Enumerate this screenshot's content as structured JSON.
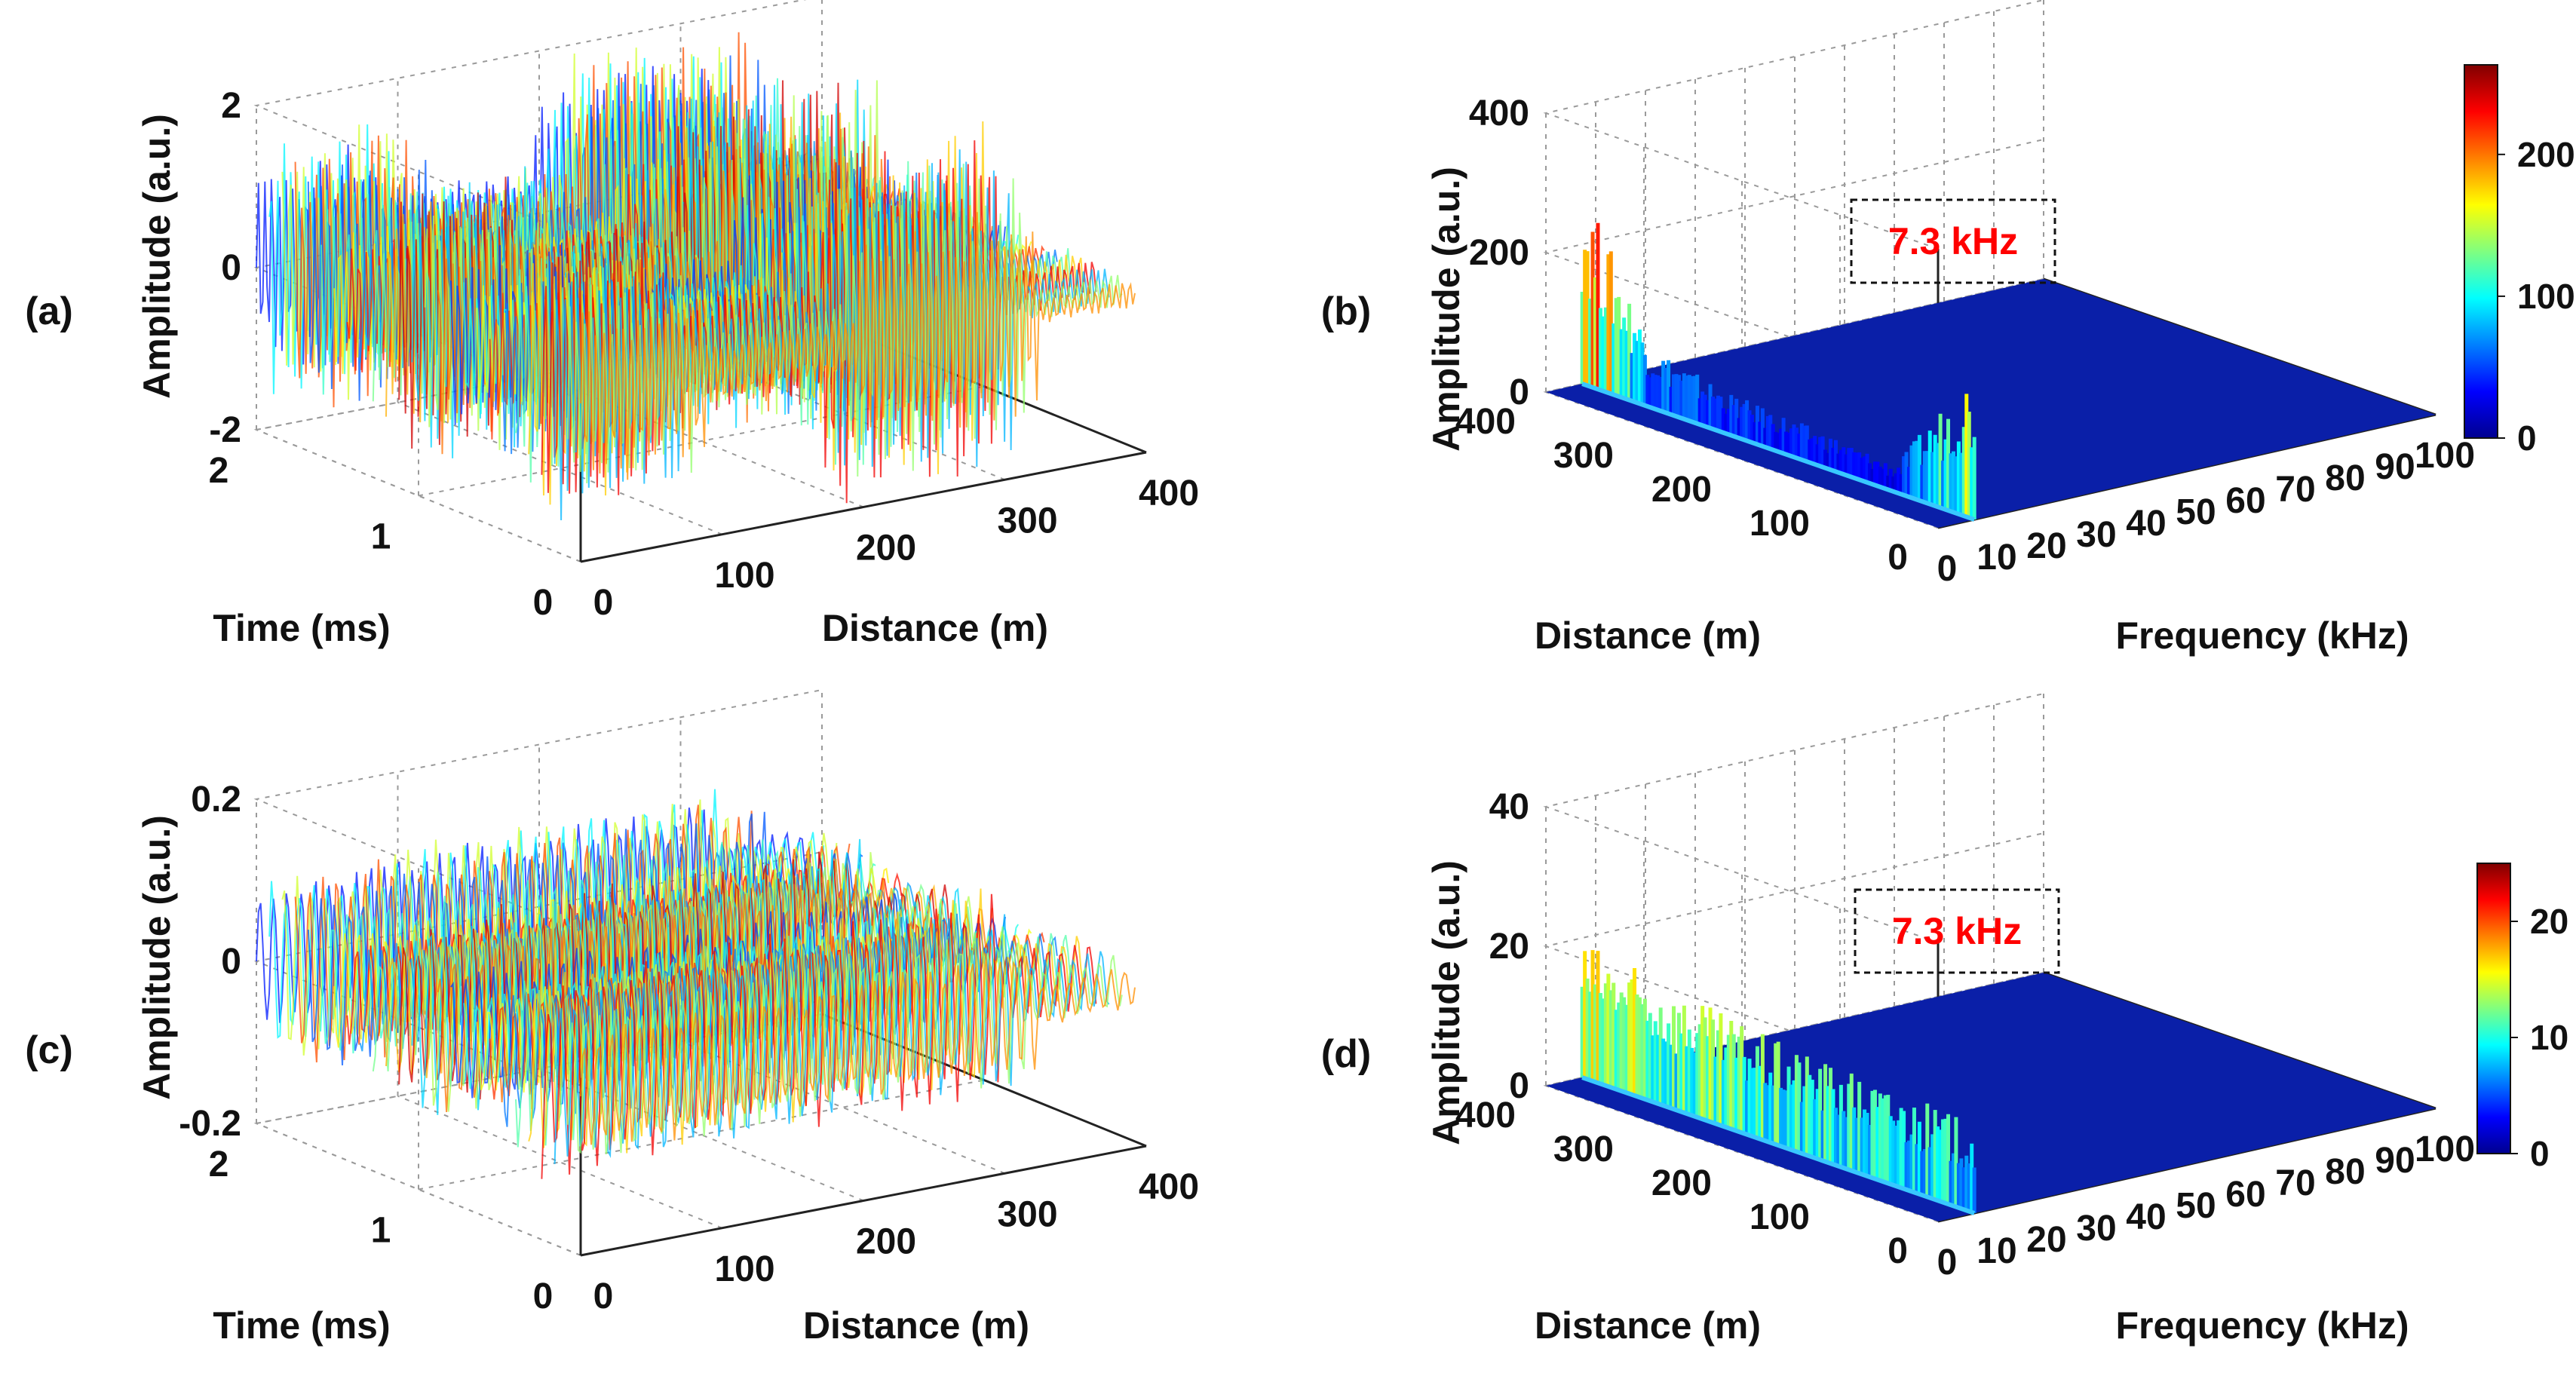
{
  "chart_data": [
    {
      "panel": "(a)",
      "type": "surface",
      "xlabel": "Distance (m)",
      "ylabel": "Time (ms)",
      "zlabel": "Amplitude (a.u.)",
      "xticks": [
        "0",
        "100",
        "200",
        "300",
        "400"
      ],
      "yticks": [
        "0",
        "1",
        "2"
      ],
      "zticks": [
        "-2",
        "0",
        "2"
      ],
      "xlim": [
        0,
        400
      ],
      "ylim": [
        0,
        2
      ],
      "zlim": [
        -2,
        2
      ],
      "grid": true,
      "colormap": "jet",
      "segments": [
        {
          "x_start": 0,
          "x_end": 90,
          "amplitude": 1.8
        },
        {
          "x_start": 90,
          "x_end": 200,
          "amplitude": 0.8
        },
        {
          "x_start": 200,
          "x_end": 330,
          "amplitude": 2.3
        },
        {
          "x_start": 330,
          "x_end": 400,
          "amplitude": 0.3
        }
      ]
    },
    {
      "panel": "(b)",
      "type": "surface",
      "xlabel": "Frequency (kHz)",
      "ylabel": "Distance (m)",
      "zlabel": "Amplitude (a.u.)",
      "xticks": [
        "0",
        "10",
        "20",
        "30",
        "40",
        "50",
        "60",
        "70",
        "80",
        "90",
        "100"
      ],
      "yticks": [
        "0",
        "100",
        "200",
        "300",
        "400"
      ],
      "zticks": [
        "0",
        "200",
        "400"
      ],
      "xlim": [
        0,
        100
      ],
      "ylim": [
        0,
        400
      ],
      "zlim": [
        0,
        400
      ],
      "colorbar_ticks": [
        "0",
        "100",
        "200"
      ],
      "annotation": "7.3 kHz",
      "peak_frequency_khz": 7.3,
      "peaks": [
        {
          "distance": 400,
          "amplitude": 290
        },
        {
          "distance": 330,
          "amplitude": 90
        },
        {
          "distance": 250,
          "amplitude": 60
        },
        {
          "distance": 150,
          "amplitude": 50
        },
        {
          "distance": 80,
          "amplitude": 40
        },
        {
          "distance": 10,
          "amplitude": 200
        }
      ],
      "grid": true,
      "colormap": "jet"
    },
    {
      "panel": "(c)",
      "type": "surface",
      "xlabel": "Distance (m)",
      "ylabel": "Time (ms)",
      "zlabel": "Amplitude (a.u.)",
      "xticks": [
        "0",
        "100",
        "200",
        "300",
        "400"
      ],
      "yticks": [
        "0",
        "1",
        "2"
      ],
      "zticks": [
        "-0.2",
        "0",
        "0.2"
      ],
      "xlim": [
        0,
        400
      ],
      "ylim": [
        0,
        2
      ],
      "zlim": [
        -0.2,
        0.2
      ],
      "grid": true,
      "colormap": "jet",
      "oscillation_amplitude": 0.13,
      "oscillation_count": 40
    },
    {
      "panel": "(d)",
      "type": "surface",
      "xlabel": "Frequency (kHz)",
      "ylabel": "Distance (m)",
      "zlabel": "Amplitude (a.u.)",
      "xticks": [
        "0",
        "10",
        "20",
        "30",
        "40",
        "50",
        "60",
        "70",
        "80",
        "90",
        "100"
      ],
      "yticks": [
        "0",
        "100",
        "200",
        "300",
        "400"
      ],
      "zticks": [
        "0",
        "20",
        "40"
      ],
      "xlim": [
        0,
        100
      ],
      "ylim": [
        0,
        400
      ],
      "zlim": [
        0,
        40
      ],
      "colorbar_ticks": [
        "0",
        "10",
        "20"
      ],
      "annotation": "7.3 kHz",
      "peak_frequency_khz": 7.3,
      "peaks": [
        {
          "distance": 400,
          "amplitude": 20
        },
        {
          "distance": 300,
          "amplitude": 17
        },
        {
          "distance": 200,
          "amplitude": 15
        },
        {
          "distance": 100,
          "amplitude": 14
        },
        {
          "distance": 10,
          "amplitude": 13
        }
      ],
      "grid": true,
      "colormap": "jet"
    }
  ]
}
